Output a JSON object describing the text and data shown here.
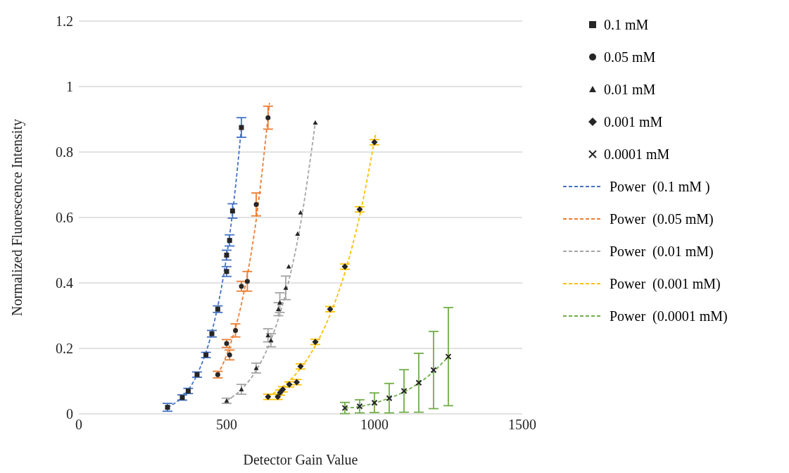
{
  "chart_data": {
    "type": "scatter",
    "xlabel": "Detector Gain Value",
    "ylabel": "Normalized Fluorescence Intensity",
    "xlim": [
      0,
      1500
    ],
    "xticks": [
      0,
      500,
      1000,
      1500
    ],
    "ylim": [
      0,
      1.2
    ],
    "yticks": [
      0,
      0.2,
      0.4,
      0.6,
      0.8,
      1,
      1.2
    ],
    "grid": "y",
    "legend": "right",
    "series": [
      {
        "name": "0.1 mM",
        "color": "#262626",
        "marker": "square",
        "x": [
          300,
          350,
          370,
          400,
          430,
          450,
          470,
          500,
          500,
          510,
          520,
          550
        ],
        "values": [
          0.02,
          0.05,
          0.07,
          0.12,
          0.18,
          0.245,
          0.32,
          0.435,
          0.485,
          0.53,
          0.62,
          0.875
        ],
        "errors": [
          0.012,
          0.008,
          0.008,
          0.008,
          0.008,
          0.01,
          0.01,
          0.015,
          0.015,
          0.017,
          0.022,
          0.03
        ]
      },
      {
        "name": "0.05 mM",
        "color": "#262626",
        "marker": "circle",
        "x": [
          470,
          500,
          510,
          530,
          550,
          570,
          600,
          640
        ],
        "values": [
          0.12,
          0.215,
          0.18,
          0.255,
          0.39,
          0.405,
          0.64,
          0.905
        ],
        "errors": [
          0.01,
          0.012,
          0.015,
          0.02,
          0.015,
          0.03,
          0.035,
          0.035
        ]
      },
      {
        "name": "0.01 mM",
        "color": "#262626",
        "marker": "triangle",
        "x": [
          500,
          550,
          600,
          640,
          650,
          675,
          680,
          700,
          710,
          740,
          750,
          800
        ],
        "values": [
          0.04,
          0.075,
          0.14,
          0.24,
          0.225,
          0.32,
          0.34,
          0.385,
          0.45,
          0.55,
          0.615,
          0.89
        ],
        "errors": [
          0.008,
          0.015,
          0.015,
          0.02,
          0.02,
          0.02,
          0.03,
          0.036,
          null,
          null,
          null,
          null
        ]
      },
      {
        "name": "0.001 mM",
        "color": "#262626",
        "marker": "diamond",
        "x": [
          640,
          673,
          681,
          690,
          712,
          737,
          750,
          800,
          850,
          900,
          950,
          1000
        ],
        "values": [
          0.052,
          0.052,
          0.065,
          0.075,
          0.09,
          0.097,
          0.145,
          0.22,
          0.32,
          0.45,
          0.625,
          0.83
        ],
        "errors": [
          0.008,
          0.008,
          0.008,
          0.008,
          0.008,
          0.008,
          0.008,
          0.008,
          0.008,
          0.008,
          0.008,
          0.008
        ]
      },
      {
        "name": "0.0001 mM",
        "color": "#262626",
        "marker": "cross",
        "x": [
          900,
          950,
          1000,
          1050,
          1100,
          1150,
          1200,
          1250
        ],
        "values": [
          0.018,
          0.023,
          0.034,
          0.048,
          0.07,
          0.095,
          0.134,
          0.175
        ],
        "errors": [
          0.017,
          0.02,
          0.03,
          0.045,
          0.065,
          0.09,
          0.118,
          0.15
        ]
      },
      {
        "name": "Power  (0.1 mM )",
        "type": "line",
        "color": "#4472c4",
        "line_style": "dashed",
        "x": [
          300,
          350,
          400,
          450,
          500,
          525,
          550
        ],
        "values": [
          0.02,
          0.052,
          0.12,
          0.25,
          0.482,
          0.653,
          0.875
        ]
      },
      {
        "name": "Power  (0.05 mM)",
        "type": "line",
        "color": "#ed7d31",
        "line_style": "dashed",
        "x": [
          470,
          500,
          550,
          600,
          645
        ],
        "values": [
          0.12,
          0.18,
          0.336,
          0.593,
          0.95
        ]
      },
      {
        "name": "Power  (0.01 mM)",
        "type": "line",
        "color": "#a5a5a5",
        "line_style": "dashed",
        "x": [
          500,
          550,
          600,
          650,
          700,
          750,
          800
        ],
        "values": [
          0.04,
          0.075,
          0.133,
          0.226,
          0.369,
          0.58,
          0.89
        ]
      },
      {
        "name": "Power  (0.001 mM)",
        "type": "line",
        "color": "#ffc000",
        "line_style": "dashed",
        "x": [
          640,
          700,
          750,
          800,
          850,
          900,
          950,
          1005
        ],
        "values": [
          0.052,
          0.091,
          0.139,
          0.208,
          0.303,
          0.432,
          0.605,
          0.86
        ]
      },
      {
        "name": "Power  (0.0001 mM)",
        "type": "line",
        "color": "#70ad47",
        "line_style": "dashed",
        "x": [
          900,
          950,
          1000,
          1050,
          1100,
          1150,
          1200,
          1250
        ],
        "values": [
          0.018,
          0.022,
          0.033,
          0.048,
          0.067,
          0.094,
          0.129,
          0.175
        ]
      }
    ]
  }
}
